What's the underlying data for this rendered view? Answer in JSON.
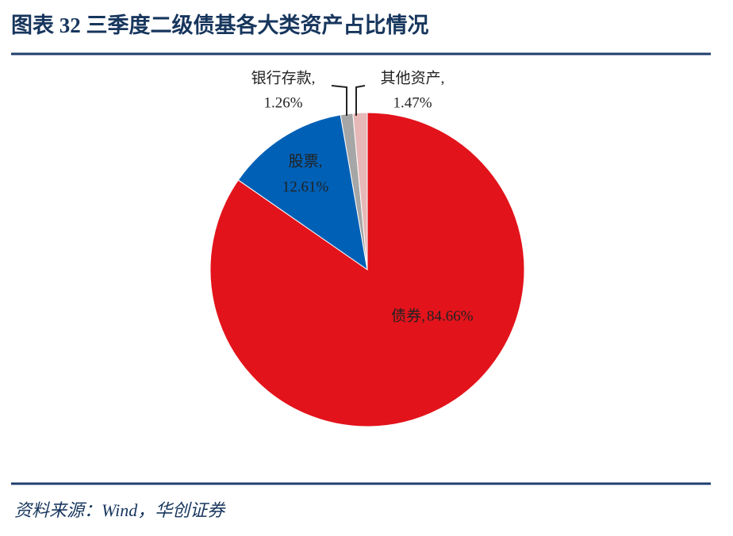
{
  "chart_data": {
    "type": "pie",
    "title": "图表 32  三季度二级债基各大类资产占比情况",
    "source": "资料来源：Wind，华创证券",
    "categories": [
      "债券,",
      "股票,",
      "银行存款,",
      "其他资产,"
    ],
    "values": [
      84.66,
      12.61,
      1.26,
      1.47
    ],
    "value_labels": [
      "84.66%",
      "12.61%",
      "1.26%",
      "1.47%"
    ],
    "colors": [
      "#e3131b",
      "#0060b6",
      "#a6a6a6",
      "#e6b8b7"
    ]
  }
}
